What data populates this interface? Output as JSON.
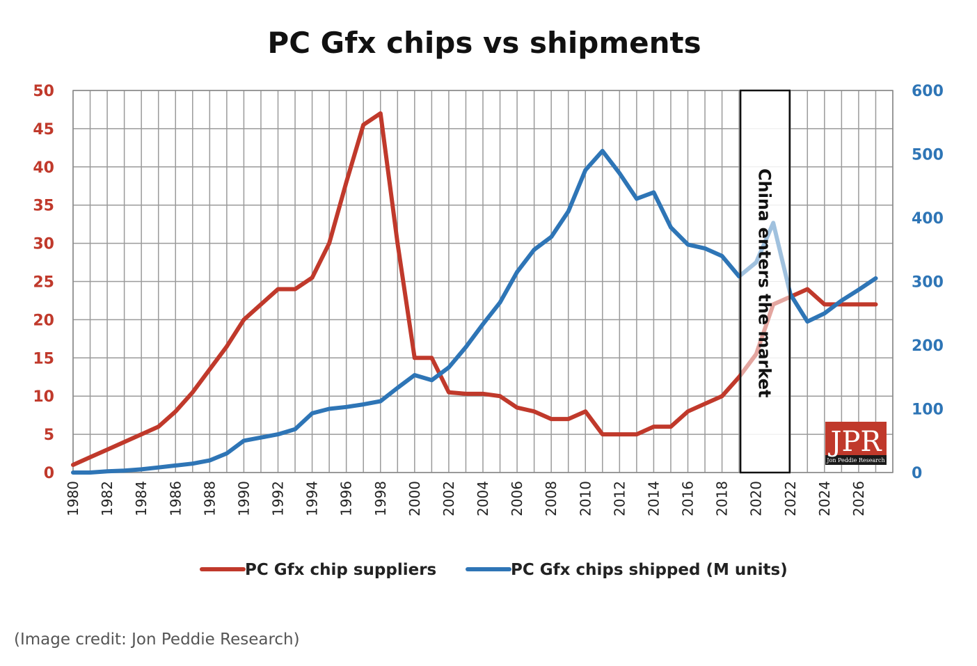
{
  "chart_data": {
    "type": "line",
    "title": "PC Gfx chips vs shipments",
    "x": [
      1980,
      1981,
      1982,
      1983,
      1984,
      1985,
      1986,
      1987,
      1988,
      1989,
      1990,
      1991,
      1992,
      1993,
      1994,
      1995,
      1996,
      1997,
      1998,
      1999,
      2000,
      2001,
      2002,
      2003,
      2004,
      2005,
      2006,
      2007,
      2008,
      2009,
      2010,
      2011,
      2012,
      2013,
      2014,
      2015,
      2016,
      2017,
      2018,
      2019,
      2020,
      2021,
      2022,
      2023,
      2024,
      2025,
      2026,
      2027
    ],
    "x_ticks": [
      "1980",
      "1982",
      "1984",
      "1986",
      "1988",
      "1990",
      "1992",
      "1994",
      "1996",
      "1998",
      "2000",
      "2002",
      "2004",
      "2006",
      "2008",
      "2010",
      "2012",
      "2014",
      "2016",
      "2018",
      "2020",
      "2022",
      "2024",
      "2026"
    ],
    "y_left_ticks": [
      "0",
      "5",
      "10",
      "15",
      "20",
      "25",
      "30",
      "35",
      "40",
      "45",
      "50"
    ],
    "y_right_ticks": [
      "0",
      "100",
      "200",
      "300",
      "400",
      "500",
      "600"
    ],
    "y_left_lim": [
      0,
      50
    ],
    "y_right_lim": [
      0,
      600
    ],
    "grid": true,
    "legend_position": "bottom",
    "series": [
      {
        "name": "PC Gfx chip suppliers",
        "axis": "left",
        "color": "#c0392b",
        "values": [
          1,
          2,
          3,
          4,
          5,
          6,
          8,
          10.5,
          13.5,
          16.5,
          20,
          22,
          24,
          24,
          25.5,
          30,
          38,
          45.5,
          47,
          30,
          15,
          15,
          10.5,
          10.3,
          10.3,
          10,
          8.5,
          8,
          7,
          7,
          8,
          5,
          5,
          5,
          6,
          6,
          8,
          9,
          10,
          12.5,
          15.5,
          22,
          23,
          24,
          22,
          22,
          22,
          22
        ]
      },
      {
        "name": "PC Gfx chips shipped (M units)",
        "axis": "right",
        "color": "#2e75b6",
        "values": [
          0,
          0,
          2,
          3,
          5,
          8,
          11,
          14,
          19,
          30,
          50,
          55,
          60,
          68,
          93,
          100,
          103,
          107,
          112,
          133,
          153,
          145,
          165,
          197,
          233,
          267,
          315,
          350,
          370,
          410,
          475,
          505,
          470,
          430,
          440,
          385,
          358,
          352,
          340,
          308,
          330,
          392,
          280,
          237,
          250,
          270,
          287,
          305
        ]
      }
    ],
    "annotation": {
      "text": "China enters the market",
      "x_start": 2019,
      "x_end": 2021
    }
  },
  "logo": {
    "text": "JPR",
    "subtext": "Jon Peddie Research"
  },
  "credit": "(Image credit: Jon Peddie Research)"
}
